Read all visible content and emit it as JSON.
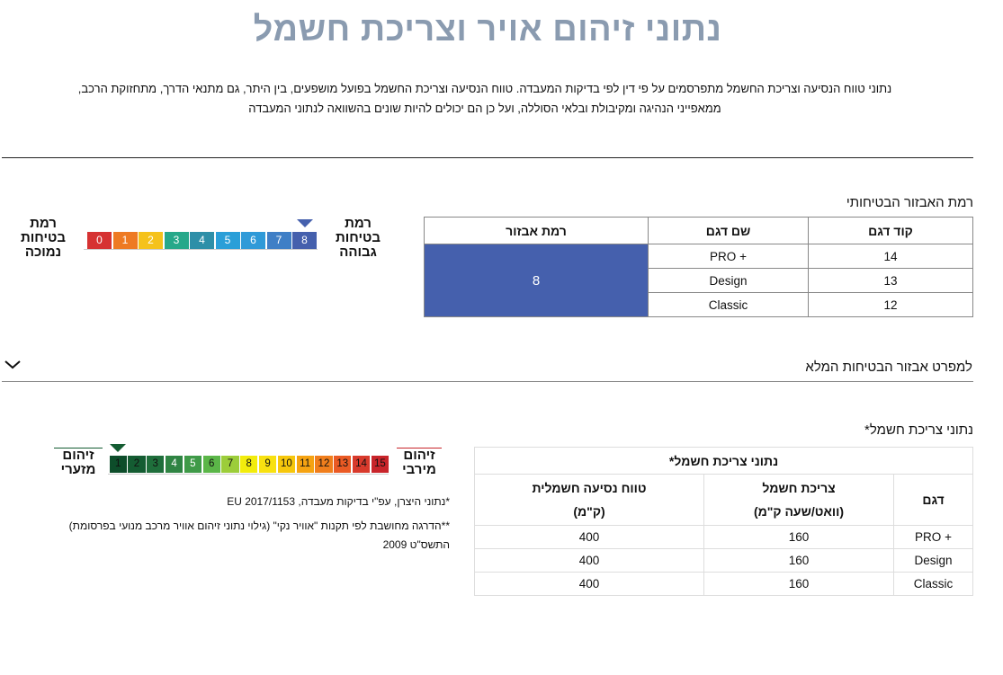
{
  "page_title": "נתוני זיהום אויר וצריכת חשמל",
  "intro_line1": "נתוני טווח הנסיעה וצריכת החשמל מתפרסמים על פי דין לפי בדיקות המעבדה. טווח הנסיעה וצריכת החשמל בפועל מושפעים, בין היתר, גם מתנאי הדרך, מתחזוקת הרכב,",
  "intro_line2": "ממאפייני הנהיגה ומקיבולת ובלאי הסוללה, ועל כן הם יכולים להיות שונים בהשוואה לנתוני המעבדה",
  "safety": {
    "title": "רמת האבזור הבטיחותי",
    "headers": {
      "code": "קוד דגם",
      "model": "שם דגם",
      "level": "רמת אבזור"
    },
    "rows": [
      {
        "code": "14",
        "model": "+ PRO"
      },
      {
        "code": "13",
        "model": "Design"
      },
      {
        "code": "12",
        "model": "Classic"
      }
    ],
    "level_value": "8",
    "scale": {
      "high_label": "רמת בטיחות גבוהה",
      "low_label": "רמת בטיחות נמוכה",
      "segments": [
        "8",
        "7",
        "6",
        "5",
        "4",
        "3",
        "2",
        "1",
        "0"
      ],
      "colors": [
        "#4560ad",
        "#3f7fc6",
        "#2f9ad8",
        "#2a9fd8",
        "#2e8fa8",
        "#27a88a",
        "#f5c21b",
        "#ee7a23",
        "#d63232"
      ],
      "pointer_color": "#4560ad",
      "selected": "8"
    }
  },
  "accordion": {
    "label": "למפרט אבזור הבטיחות המלא",
    "icon": "chevron-down-icon"
  },
  "electric": {
    "title": "נתוני צריכת חשמל*",
    "table_caption": "נתוני צריכת חשמל*",
    "headers": {
      "model": "דגם",
      "consumption": "צריכת חשמל",
      "consumption_unit": "(וואט/שעה ק\"מ)",
      "range": "טווח נסיעה חשמלית",
      "range_unit": "(ק\"מ)"
    },
    "rows": [
      {
        "model": "+ PRO",
        "consumption": "160",
        "range": "400"
      },
      {
        "model": "Design",
        "consumption": "160",
        "range": "400"
      },
      {
        "model": "Classic",
        "consumption": "160",
        "range": "400"
      }
    ],
    "pollution_scale": {
      "high_label_1": "זיהום",
      "high_label_2": "מירבי",
      "low_label_1": "זיהום",
      "low_label_2": "מזערי",
      "segments": [
        "15",
        "14",
        "13",
        "12",
        "11",
        "10",
        "9",
        "8",
        "7",
        "6",
        "5",
        "4",
        "3",
        "2",
        "1"
      ],
      "colors": [
        "#c8242a",
        "#d83a2c",
        "#ea5a24",
        "#f07e1c",
        "#f5a312",
        "#f6c70c",
        "#f8e110",
        "#f2ec0c",
        "#9ccd3a",
        "#5bb648",
        "#3f9a48",
        "#2f8443",
        "#1f6e3b",
        "#145c32",
        "#0d4d2a"
      ],
      "selected": "1",
      "pointer_color": "#145c32",
      "high_bar_color": "#c8242a",
      "low_bar_color": "#145c32"
    },
    "footnote_1": "*נתוני היצרן, עפ\"י בדיקות מעבדה, EU 2017/1153",
    "footnote_2a": "**הדרגה מחושבת לפי תקנות \"אוויר נקי\" (גילוי נתוני זיהום אוויר מרכב מנועי בפרסומת)",
    "footnote_2b": "התשס\"ט 2009"
  }
}
